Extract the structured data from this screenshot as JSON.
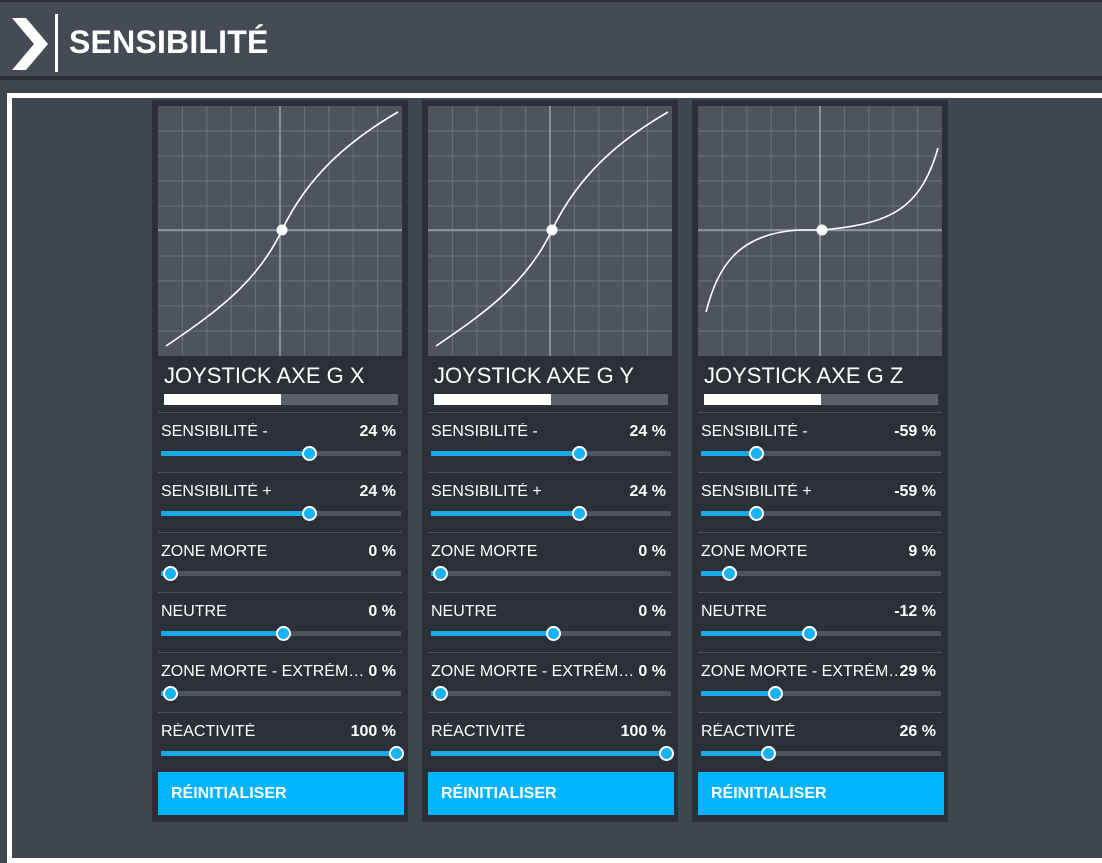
{
  "header": {
    "title": "SENSIBILITÉ",
    "icon": "chevron-right-icon"
  },
  "colors": {
    "accent": "#00b4ff",
    "panel": "#2b3038",
    "background": "#3e4650",
    "graph": "#4d545e"
  },
  "axes": [
    {
      "name": "JOYSTICK AXE G X",
      "position_fraction": 0.5,
      "curve": "s-curve-positive",
      "settings": [
        {
          "label": "SENSIBILITÉ -",
          "value": "24 %",
          "fraction": 0.61
        },
        {
          "label": "SENSIBILITÉ +",
          "value": "24 %",
          "fraction": 0.61
        },
        {
          "label": "ZONE MORTE",
          "value": "0 %",
          "fraction": 0.03
        },
        {
          "label": "NEUTRE",
          "value": "0 %",
          "fraction": 0.5
        },
        {
          "label": "ZONE MORTE - EXTRÉMITÉ",
          "value": "0 %",
          "fraction": 0.03
        },
        {
          "label": "RÉACTIVITÉ",
          "value": "100 %",
          "fraction": 0.97
        }
      ],
      "reset_label": "RÉINITIALISER"
    },
    {
      "name": "JOYSTICK AXE G Y",
      "position_fraction": 0.5,
      "curve": "s-curve-positive",
      "settings": [
        {
          "label": "SENSIBILITÉ -",
          "value": "24 %",
          "fraction": 0.61
        },
        {
          "label": "SENSIBILITÉ +",
          "value": "24 %",
          "fraction": 0.61
        },
        {
          "label": "ZONE MORTE",
          "value": "0 %",
          "fraction": 0.03
        },
        {
          "label": "NEUTRE",
          "value": "0 %",
          "fraction": 0.5
        },
        {
          "label": "ZONE MORTE - EXTRÉMITÉ",
          "value": "0 %",
          "fraction": 0.03
        },
        {
          "label": "RÉACTIVITÉ",
          "value": "100 %",
          "fraction": 0.97
        }
      ],
      "reset_label": "RÉINITIALISER"
    },
    {
      "name": "JOYSTICK AXE G Z",
      "position_fraction": 0.5,
      "curve": "cubic-negative-sensitivity",
      "settings": [
        {
          "label": "SENSIBILITÉ -",
          "value": "-59 %",
          "fraction": 0.22
        },
        {
          "label": "SENSIBILITÉ +",
          "value": "-59 %",
          "fraction": 0.22
        },
        {
          "label": "ZONE MORTE",
          "value": "9 %",
          "fraction": 0.11
        },
        {
          "label": "NEUTRE",
          "value": "-12 %",
          "fraction": 0.44
        },
        {
          "label": "ZONE MORTE - EXTRÉMITÉ",
          "value": "29 %",
          "fraction": 0.3
        },
        {
          "label": "RÉACTIVITÉ",
          "value": "26 %",
          "fraction": 0.27
        }
      ],
      "reset_label": "RÉINITIALISER"
    }
  ]
}
